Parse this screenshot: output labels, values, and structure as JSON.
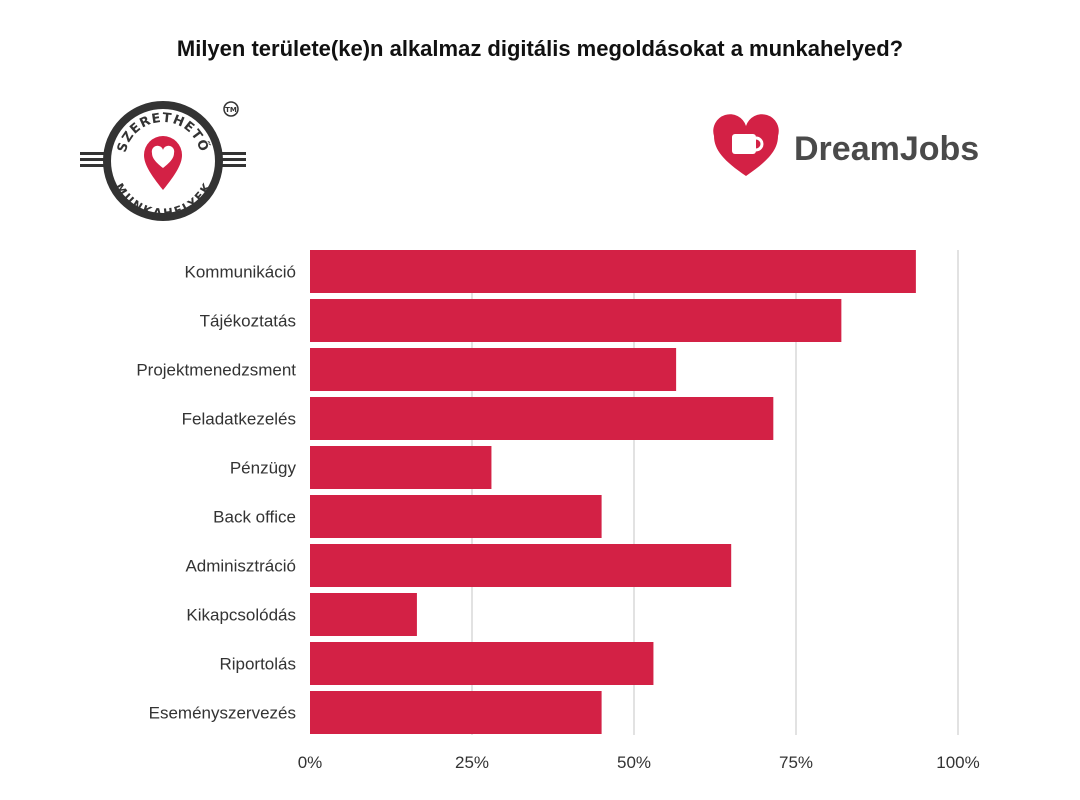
{
  "title": "Milyen területe(ke)n alkalmaz digitális megoldásokat a munkahelyed?",
  "logos": {
    "left": {
      "top_text": "SZERETHETŐ",
      "bottom_text": "MUNKAHELYEK",
      "tm": "TM",
      "icon": "heart-pin-icon"
    },
    "right": {
      "brand": "DreamJobs",
      "icon": "heart-mug-icon"
    }
  },
  "colors": {
    "bar": "#d32145",
    "grid": "#d9d9d9",
    "text": "#333333"
  },
  "chart_data": {
    "type": "bar",
    "orientation": "horizontal",
    "categories": [
      "Kommunikáció",
      "Tájékoztatás",
      "Projektmenedzsment",
      "Feladatkezelés",
      "Pénzügy",
      "Back office",
      "Adminisztráció",
      "Kikapcsolódás",
      "Riportolás",
      "Eseményszervezés"
    ],
    "values": [
      93.5,
      82,
      56.5,
      71.5,
      28,
      45,
      65,
      16.5,
      53,
      45
    ],
    "unit": "%",
    "xlim": [
      0,
      100
    ],
    "xticks": [
      0,
      25,
      50,
      75,
      100
    ],
    "xtick_labels": [
      "0%",
      "25%",
      "50%",
      "75%",
      "100%"
    ],
    "grid": true
  }
}
